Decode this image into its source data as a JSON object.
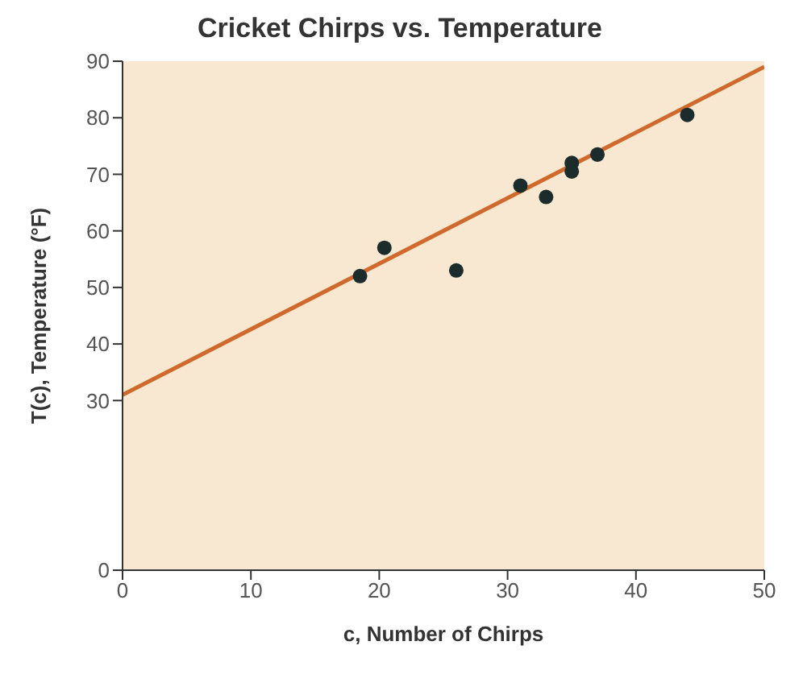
{
  "chart_data": {
    "type": "scatter",
    "title": "Cricket Chirps vs. Temperature",
    "xlabel": "c, Number of Chirps",
    "ylabel": "T(c), Temperature (°F)",
    "series": [
      {
        "marker": "circle",
        "color": "#1c2b2b",
        "x": [
          18.5,
          20.4,
          26,
          31,
          33,
          35,
          35,
          37,
          44
        ],
        "values": [
          52,
          57,
          53,
          68,
          66,
          72,
          70.5,
          73.5,
          80.5
        ]
      },
      {
        "type": "line",
        "marker": "none",
        "color": "#cf6a2c",
        "x": [
          0,
          50
        ],
        "values": [
          31,
          89
        ]
      }
    ],
    "xlim": [
      0,
      50
    ],
    "xticks": [
      0,
      10,
      20,
      30,
      40,
      50
    ],
    "ylim": [
      0,
      90
    ],
    "yticks": [
      0,
      30,
      40,
      50,
      60,
      70,
      80,
      90
    ],
    "grid": false
  }
}
